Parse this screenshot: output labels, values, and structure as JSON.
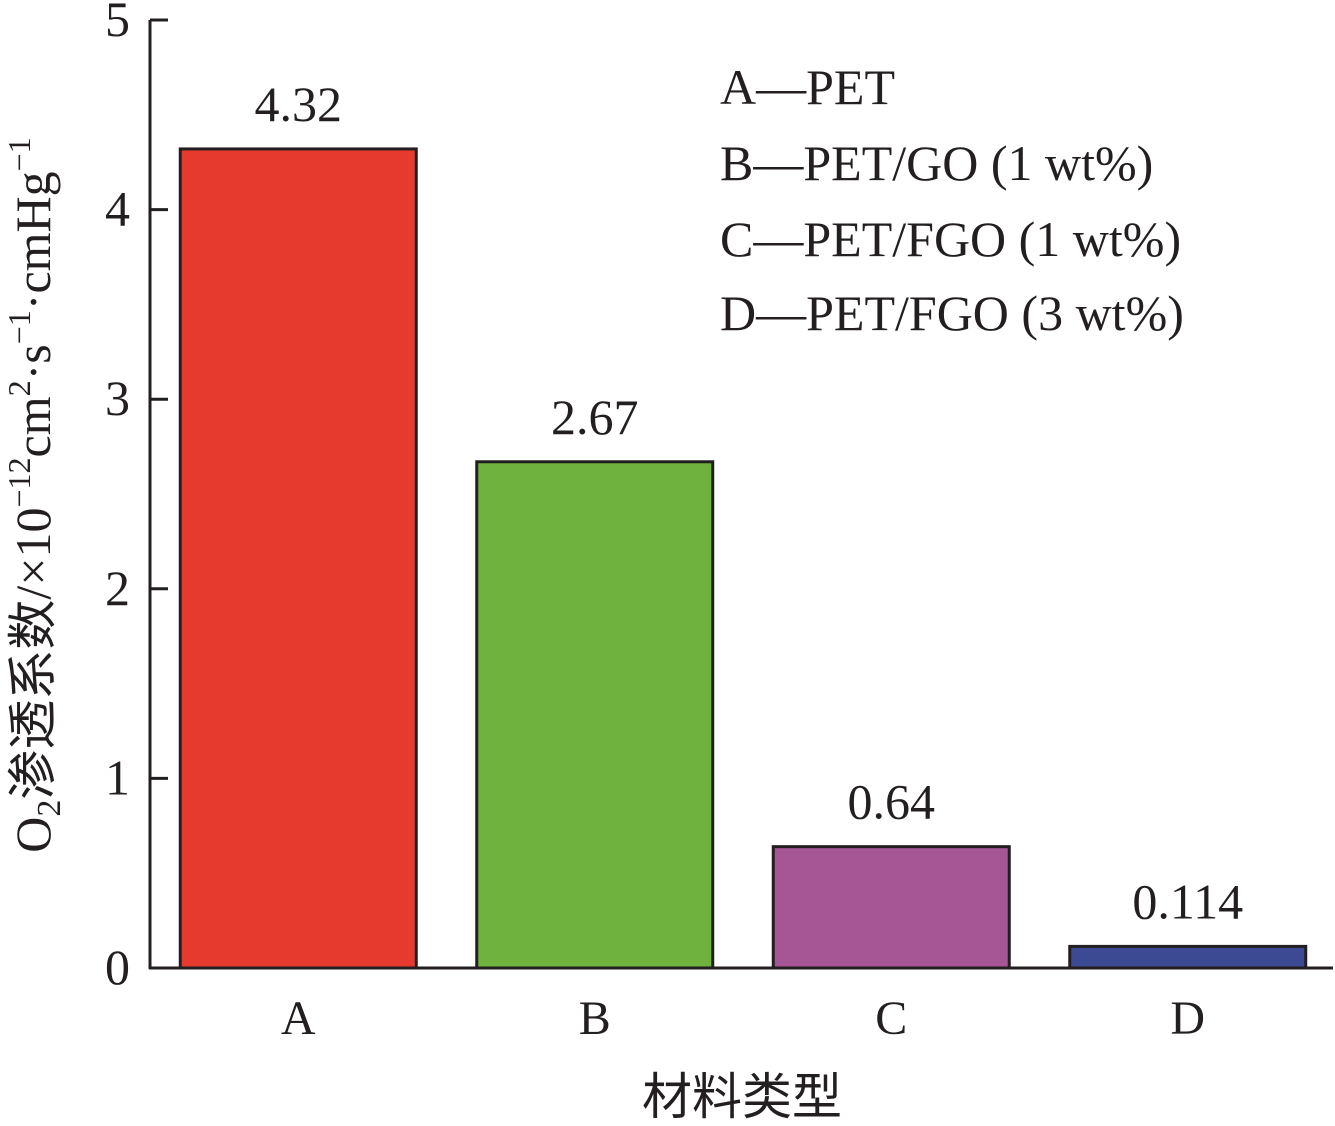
{
  "chart_data": {
    "type": "bar",
    "categories": [
      "A",
      "B",
      "C",
      "D"
    ],
    "values": [
      4.32,
      2.67,
      0.64,
      0.114
    ],
    "value_labels": [
      "4.32",
      "2.67",
      "0.64",
      "0.114"
    ],
    "colors": [
      "#e63a2e",
      "#6fb23d",
      "#a65695",
      "#3b4a92"
    ],
    "bar_edge_color": "#231f20",
    "ylim": [
      0,
      5
    ],
    "yticks": [
      0,
      1,
      2,
      3,
      4,
      5
    ],
    "xlabel": "材料类型",
    "ylabel": {
      "prefix": "O",
      "prefix_sub": "2",
      "main": "渗透系数/×10",
      "exp1": "−12",
      "unit1": "cm",
      "exp2": "2",
      "sep1": "·s",
      "exp3": "−1",
      "sep2": "·cmHg",
      "exp4": "−1"
    },
    "legend": {
      "position": "top-right",
      "entries": [
        "A—PET",
        "B—PET/GO (1 wt%)",
        "C—PET/FGO (1 wt%)",
        "D—PET/FGO (3 wt%)"
      ]
    },
    "grid": false
  }
}
